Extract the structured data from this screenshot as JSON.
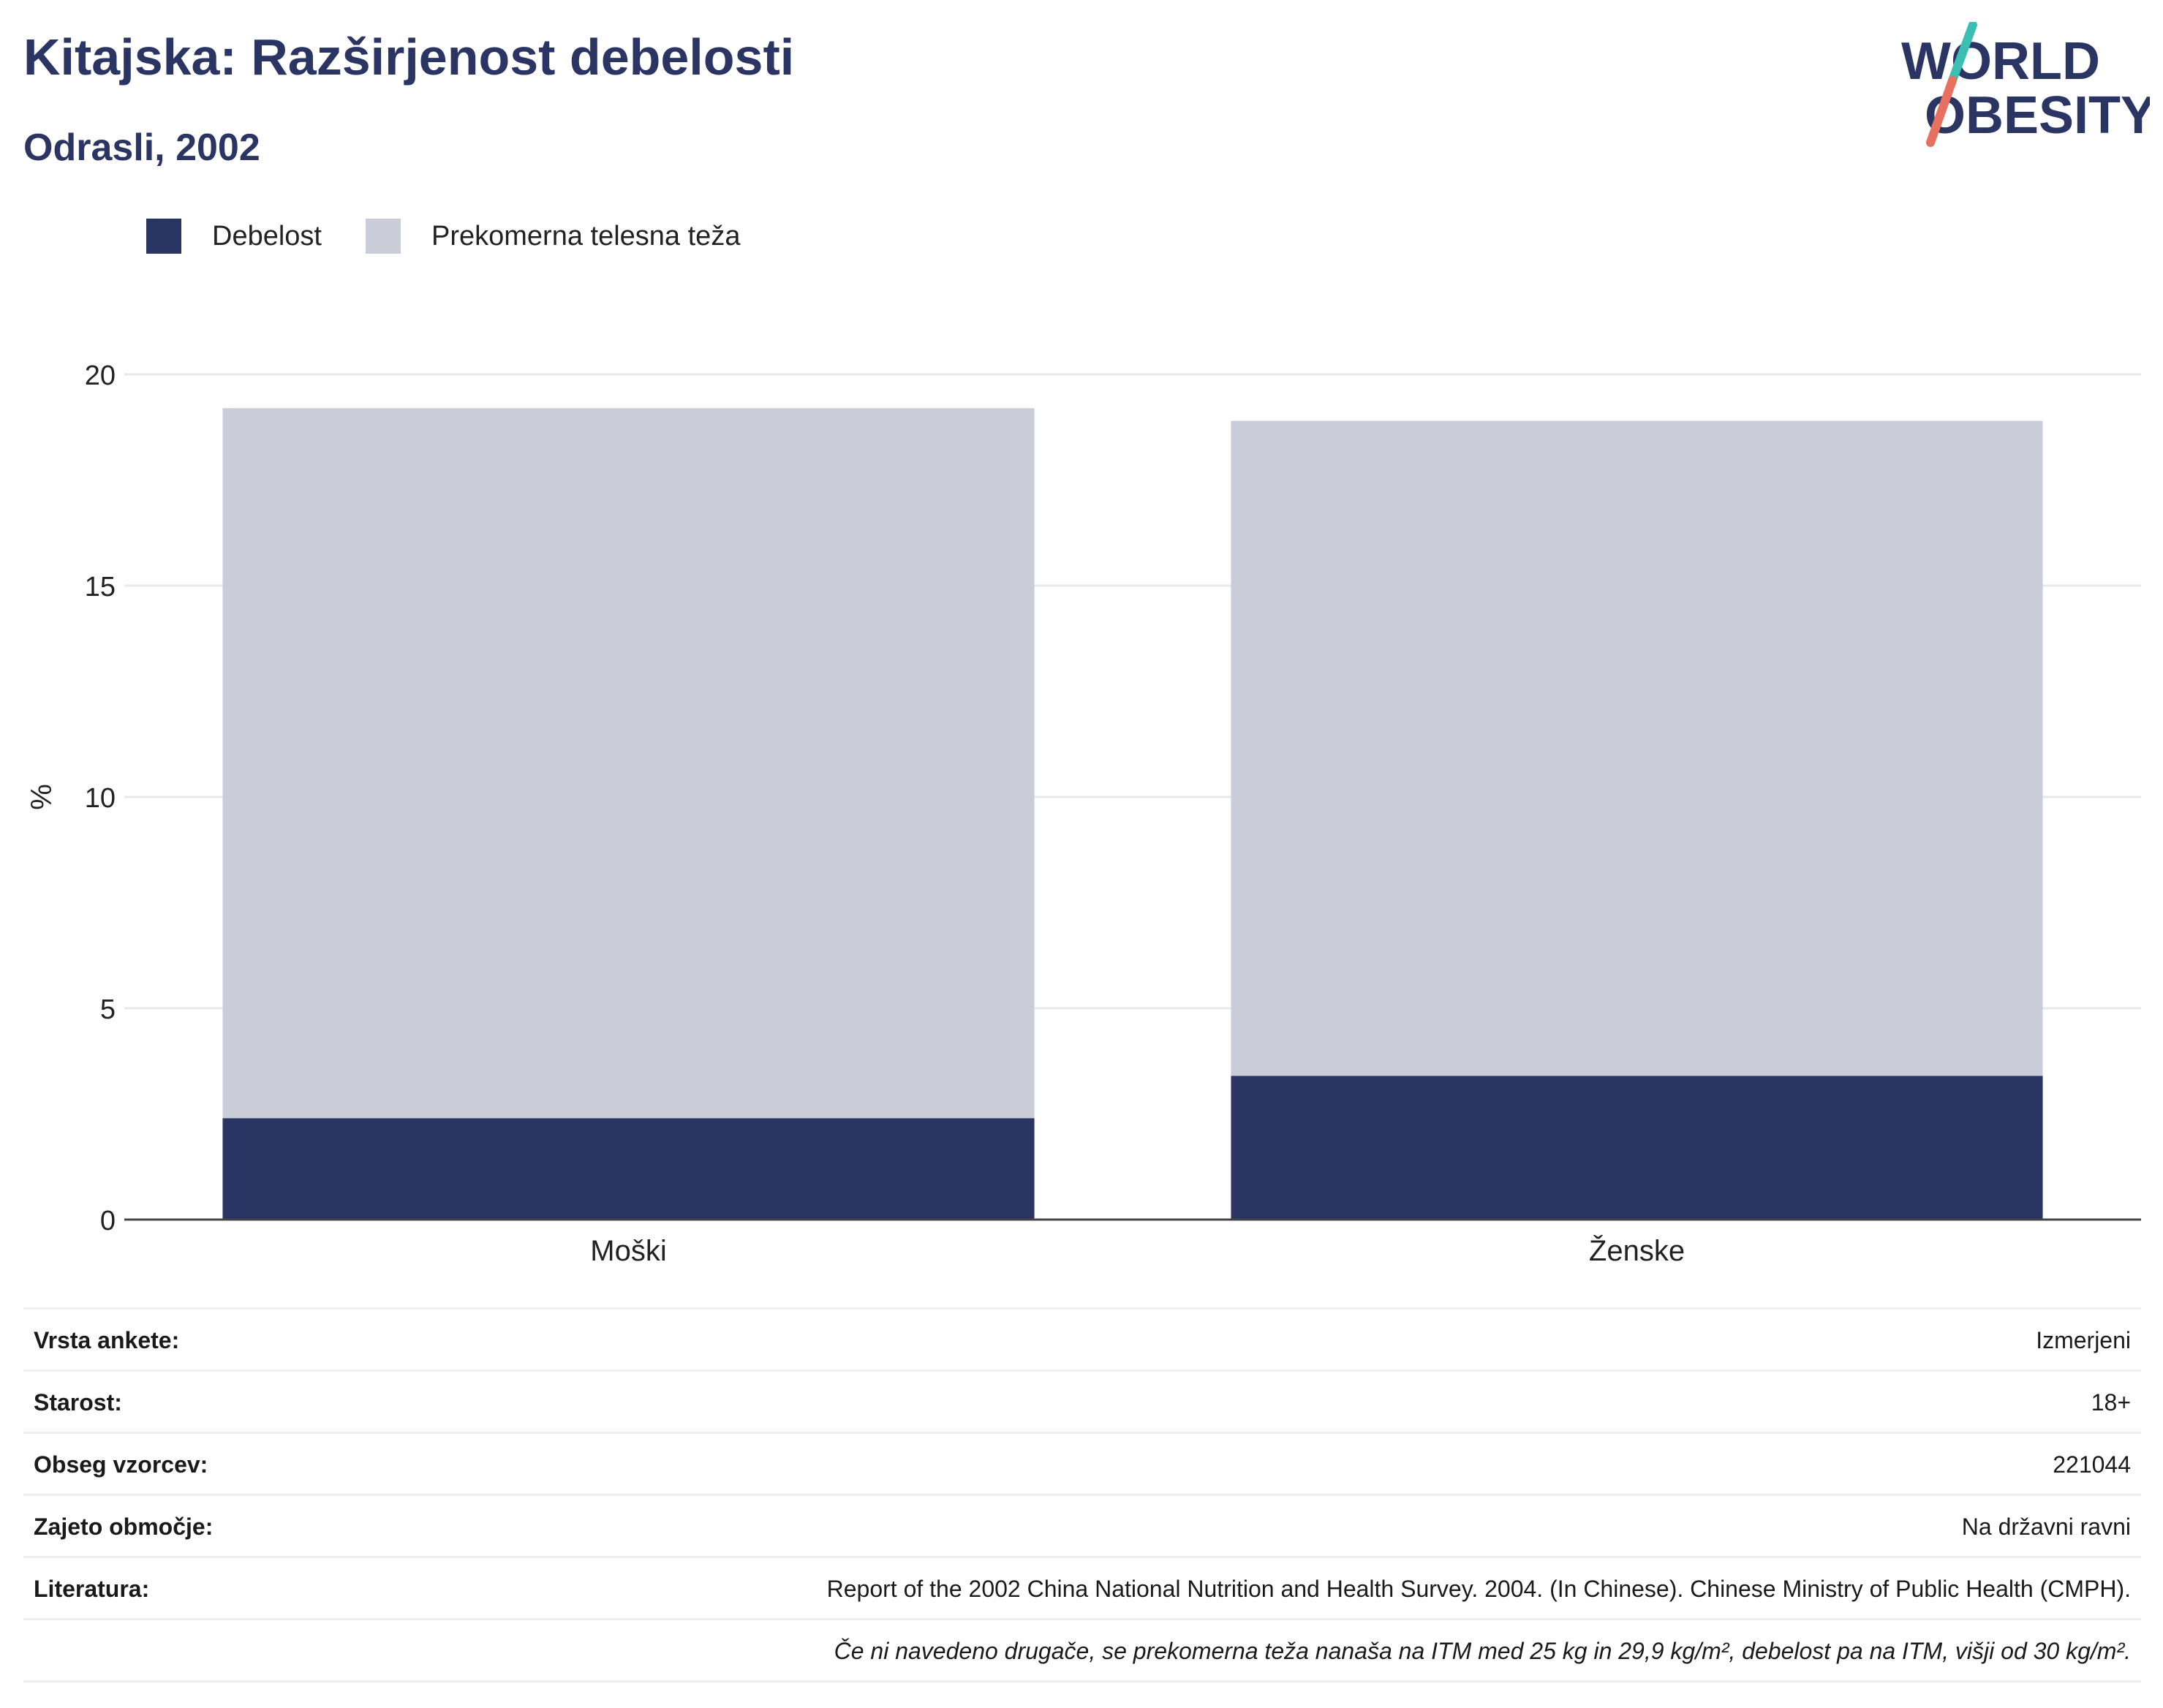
{
  "header": {
    "title": "Kitajska: Razširjenost debelosti",
    "subtitle": "Odrasli, 2002"
  },
  "logo": {
    "line1": "WORLD",
    "line2": "OBESITY",
    "colors": {
      "text": "#2a3563",
      "slash_top": "#3bbfb3",
      "slash_bottom": "#e8705f"
    }
  },
  "chart_data": {
    "type": "bar",
    "stacked": true,
    "categories": [
      "Moški",
      "Ženske"
    ],
    "series": [
      {
        "name": "Debelost",
        "values": [
          2.4,
          3.4
        ],
        "color": "#2a3563"
      },
      {
        "name": "Prekomerna telesna teža",
        "values": [
          16.8,
          15.5
        ],
        "color": "#caccd8"
      }
    ],
    "ylabel": "%",
    "ylim": [
      0,
      20
    ],
    "yticks": [
      0,
      5,
      10,
      15,
      20
    ],
    "grid": true,
    "legend": "top-left"
  },
  "info": {
    "rows": [
      {
        "label": "Vrsta ankete:",
        "value": "Izmerjeni"
      },
      {
        "label": "Starost:",
        "value": "18+"
      },
      {
        "label": "Obseg vzorcev:",
        "value": "221044"
      },
      {
        "label": "Zajeto območje:",
        "value": "Na državni ravni"
      },
      {
        "label": "Literatura:",
        "value": "Report of the 2002 China National Nutrition and Health Survey. 2004. (In Chinese). Chinese Ministry of Public Health (CMPH)."
      }
    ],
    "note": "Če ni navedeno drugače, se prekomerna teža nanaša na ITM med 25 kg in 29,9 kg/m², debelost pa na ITM, višji od 30 kg/m²."
  }
}
